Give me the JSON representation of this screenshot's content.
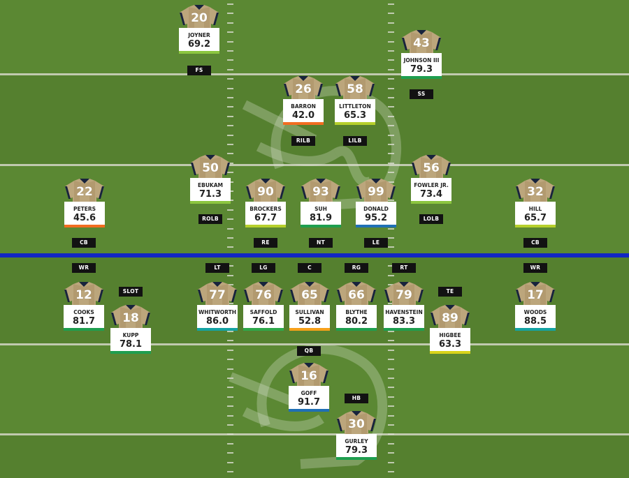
{
  "players": [
    {
      "id": "joyner",
      "number": "20",
      "name": "JOYNER",
      "rating": "69.2",
      "position": "FS",
      "color": "#8cc63f"
    },
    {
      "id": "johnson",
      "number": "43",
      "name": "JOHNSON III",
      "rating": "79.3",
      "position": "SS",
      "color": "#1e9e4f"
    },
    {
      "id": "barron",
      "number": "26",
      "name": "BARRON",
      "rating": "42.0",
      "position": "RILB",
      "color": "#f26d21"
    },
    {
      "id": "littleton",
      "number": "58",
      "name": "LITTLETON",
      "rating": "65.3",
      "position": "LILB",
      "color": "#b6cf2c"
    },
    {
      "id": "ebukam",
      "number": "50",
      "name": "EBUKAM",
      "rating": "71.3",
      "position": "ROLB",
      "color": "#8cc63f"
    },
    {
      "id": "fowler",
      "number": "56",
      "name": "FOWLER JR.",
      "rating": "73.4",
      "position": "LOLB",
      "color": "#8cc63f"
    },
    {
      "id": "peters",
      "number": "22",
      "name": "PETERS",
      "rating": "45.6",
      "position": "CB",
      "color": "#f26d21"
    },
    {
      "id": "brockers",
      "number": "90",
      "name": "BROCKERS",
      "rating": "67.7",
      "position": "RE",
      "color": "#b6cf2c"
    },
    {
      "id": "suh",
      "number": "93",
      "name": "SUH",
      "rating": "81.9",
      "position": "NT",
      "color": "#1e9e4f"
    },
    {
      "id": "donald",
      "number": "99",
      "name": "DONALD",
      "rating": "95.2",
      "position": "LE",
      "color": "#1f6fb5"
    },
    {
      "id": "hill",
      "number": "32",
      "name": "HILL",
      "rating": "65.7",
      "position": "CB",
      "color": "#b6cf2c"
    },
    {
      "id": "cooks",
      "number": "12",
      "name": "COOKS",
      "rating": "81.7",
      "position": "WR",
      "color": "#1e9e4f"
    },
    {
      "id": "kupp",
      "number": "18",
      "name": "KUPP",
      "rating": "78.1",
      "position": "SLOT",
      "color": "#1e9e4f"
    },
    {
      "id": "whitworth",
      "number": "77",
      "name": "WHITWORTH",
      "rating": "86.0",
      "position": "LT",
      "color": "#14a3a3"
    },
    {
      "id": "saffold",
      "number": "76",
      "name": "SAFFOLD",
      "rating": "76.1",
      "position": "LG",
      "color": "#2ea84a"
    },
    {
      "id": "sullivan",
      "number": "65",
      "name": "SULLIVAN",
      "rating": "52.8",
      "position": "C",
      "color": "#f6a01a"
    },
    {
      "id": "blythe",
      "number": "66",
      "name": "BLYTHE",
      "rating": "80.2",
      "position": "RG",
      "color": "#1e9e4f"
    },
    {
      "id": "havenstein",
      "number": "79",
      "name": "HAVENSTEIN",
      "rating": "83.3",
      "position": "RT",
      "color": "#1e9e4f"
    },
    {
      "id": "higbee",
      "number": "89",
      "name": "HIGBEE",
      "rating": "63.3",
      "position": "TE",
      "color": "#d9d31b"
    },
    {
      "id": "woods",
      "number": "17",
      "name": "WOODS",
      "rating": "88.5",
      "position": "WR",
      "color": "#14a3a3"
    },
    {
      "id": "goff",
      "number": "16",
      "name": "GOFF",
      "rating": "91.7",
      "position": "QB",
      "color": "#1f6fb5"
    },
    {
      "id": "gurley",
      "number": "30",
      "name": "GURLEY",
      "rating": "79.3",
      "position": "HB",
      "color": "#1e9e4f"
    }
  ],
  "colors": {
    "grass_light": "#5d8a34",
    "grass_dark": "#527b2d",
    "scrimmage": "#1226c4",
    "jersey_gold": "#bca67c",
    "jersey_navy": "#17233c"
  }
}
